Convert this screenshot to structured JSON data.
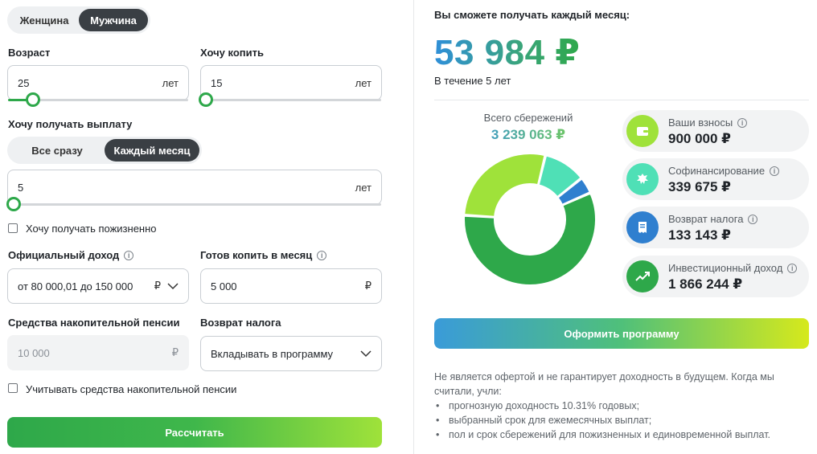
{
  "gender": {
    "options": [
      "Женщина",
      "Мужчина"
    ],
    "selected": 1
  },
  "age": {
    "label": "Возраст",
    "value": "25",
    "unit": "лет"
  },
  "save_years": {
    "label": "Хочу копить",
    "value": "15",
    "unit": "лет"
  },
  "payout": {
    "label": "Хочу получать выплату",
    "options": [
      "Все сразу",
      "Каждый месяц"
    ],
    "selected": 1,
    "value": "5",
    "unit": "лет"
  },
  "lifetime": {
    "label": "Хочу получать пожизненно",
    "checked": false
  },
  "income": {
    "label": "Официальный доход",
    "value": "от 80 000,01 до 150 000",
    "unit": "₽"
  },
  "monthly": {
    "label": "Готов копить в месяц",
    "value": "5 000",
    "unit": "₽"
  },
  "pension_funds": {
    "label": "Средства накопительной пенсии",
    "value": "10 000",
    "unit": "₽"
  },
  "tax_return": {
    "label": "Возврат налога",
    "value": "Вкладывать в программу"
  },
  "use_pension": {
    "label": "Учитывать средства накопительной пенсии",
    "checked": false
  },
  "calc_button": "Рассчитать",
  "result": {
    "heading": "Вы сможете получать каждый месяц:",
    "amount": "53 984 ₽",
    "period": "В течение 5 лет"
  },
  "total": {
    "label": "Всего сбережений",
    "value": "3 239 063 ₽"
  },
  "breakdown": [
    {
      "title": "Ваши взносы",
      "value": "900 000 ₽",
      "color": "#9fe23a",
      "icon": "wallet-icon"
    },
    {
      "title": "Софинансирование",
      "value": "339 675 ₽",
      "color": "#4fe0b6",
      "icon": "emblem-icon"
    },
    {
      "title": "Возврат налога",
      "value": "133 143 ₽",
      "color": "#2f7fcf",
      "icon": "receipt-icon"
    },
    {
      "title": "Инвестиционный доход",
      "value": "1 866 244 ₽",
      "color": "#2ea84a",
      "icon": "trend-up-icon"
    }
  ],
  "chart_data": {
    "type": "pie",
    "title": "Всего сбережений",
    "categories": [
      "Ваши взносы",
      "Софинансирование",
      "Возврат налога",
      "Инвестиционный доход"
    ],
    "values": [
      900000,
      339675,
      133143,
      1866244
    ],
    "colors": [
      "#9fe23a",
      "#4fe0b6",
      "#2f7fcf",
      "#2ea84a"
    ]
  },
  "cta_button": "Оформить программу",
  "disclaimer": {
    "text": "Не является офертой и не гарантирует доходность в будущем. Когда мы считали, учли:",
    "items": [
      "прогнозную доходность 10.31% годовых;",
      "выбранный срок для ежемесячных выплат;",
      "пол и срок сбережений для пожизненных и единовременной выплат."
    ]
  }
}
